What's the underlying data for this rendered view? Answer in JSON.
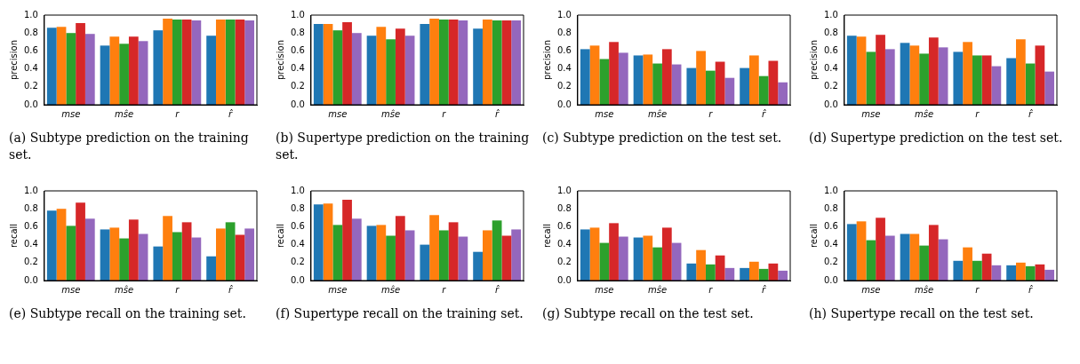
{
  "chart_data": [
    {
      "type": "bar",
      "ylabel": "precision",
      "categories": [
        "mse",
        "mŝe",
        "r",
        "r̂"
      ],
      "ylim": [
        0,
        1
      ],
      "yticks": [
        {
          "value": 0,
          "label": "0.0"
        },
        {
          "value": 0.2,
          "label": "0.2"
        },
        {
          "value": 0.4,
          "label": "0.4"
        },
        {
          "value": 0.6,
          "label": "0.6"
        },
        {
          "value": 0.8,
          "label": "0.8"
        },
        {
          "value": 1,
          "label": "1.0"
        }
      ],
      "annotations": [
        "(a) Subtype prediction on the training set."
      ],
      "series": [
        {
          "color": "#1f77b4",
          "values": [
            0.86,
            0.66,
            0.83,
            0.77
          ]
        },
        {
          "color": "#ff7f0e",
          "values": [
            0.87,
            0.76,
            0.96,
            0.95
          ]
        },
        {
          "color": "#2ca02c",
          "values": [
            0.8,
            0.68,
            0.95,
            0.95
          ]
        },
        {
          "color": "#d62728",
          "values": [
            0.91,
            0.76,
            0.95,
            0.95
          ]
        },
        {
          "color": "#9467bd",
          "values": [
            0.79,
            0.71,
            0.94,
            0.94
          ]
        }
      ]
    },
    {
      "type": "bar",
      "ylabel": "precision",
      "categories": [
        "mse",
        "mŝe",
        "r",
        "r̂"
      ],
      "ylim": [
        0,
        1
      ],
      "yticks": [
        {
          "value": 0,
          "label": "0.0"
        },
        {
          "value": 0.2,
          "label": "0.2"
        },
        {
          "value": 0.4,
          "label": "0.4"
        },
        {
          "value": 0.6,
          "label": "0.6"
        },
        {
          "value": 0.8,
          "label": "0.8"
        },
        {
          "value": 1,
          "label": "1.0"
        }
      ],
      "annotations": [
        "(b) Supertype prediction on the training set."
      ],
      "series": [
        {
          "color": "#1f77b4",
          "values": [
            0.9,
            0.77,
            0.9,
            0.85
          ]
        },
        {
          "color": "#ff7f0e",
          "values": [
            0.9,
            0.87,
            0.96,
            0.95
          ]
        },
        {
          "color": "#2ca02c",
          "values": [
            0.83,
            0.73,
            0.95,
            0.94
          ]
        },
        {
          "color": "#d62728",
          "values": [
            0.92,
            0.85,
            0.95,
            0.94
          ]
        },
        {
          "color": "#9467bd",
          "values": [
            0.8,
            0.77,
            0.94,
            0.94
          ]
        }
      ]
    },
    {
      "type": "bar",
      "ylabel": "precision",
      "categories": [
        "mse",
        "mŝe",
        "r",
        "r̂"
      ],
      "ylim": [
        0,
        1
      ],
      "yticks": [
        {
          "value": 0,
          "label": "0.0"
        },
        {
          "value": 0.2,
          "label": "0.2"
        },
        {
          "value": 0.4,
          "label": "0.4"
        },
        {
          "value": 0.6,
          "label": "0.6"
        },
        {
          "value": 0.8,
          "label": "0.8"
        },
        {
          "value": 1,
          "label": "1.0"
        }
      ],
      "annotations": [
        "(c) Subtype prediction on the test set."
      ],
      "series": [
        {
          "color": "#1f77b4",
          "values": [
            0.62,
            0.55,
            0.41,
            0.41
          ]
        },
        {
          "color": "#ff7f0e",
          "values": [
            0.66,
            0.56,
            0.6,
            0.55
          ]
        },
        {
          "color": "#2ca02c",
          "values": [
            0.51,
            0.46,
            0.38,
            0.32
          ]
        },
        {
          "color": "#d62728",
          "values": [
            0.7,
            0.62,
            0.48,
            0.49
          ]
        },
        {
          "color": "#9467bd",
          "values": [
            0.58,
            0.45,
            0.3,
            0.25
          ]
        }
      ]
    },
    {
      "type": "bar",
      "ylabel": "precision",
      "categories": [
        "mse",
        "mŝe",
        "r",
        "r̂"
      ],
      "ylim": [
        0,
        1
      ],
      "yticks": [
        {
          "value": 0,
          "label": "0.0"
        },
        {
          "value": 0.2,
          "label": "0.2"
        },
        {
          "value": 0.4,
          "label": "0.4"
        },
        {
          "value": 0.6,
          "label": "0.6"
        },
        {
          "value": 0.8,
          "label": "0.8"
        },
        {
          "value": 1,
          "label": "1.0"
        }
      ],
      "annotations": [
        "(d) Supertype prediction on the test set."
      ],
      "series": [
        {
          "color": "#1f77b4",
          "values": [
            0.77,
            0.69,
            0.59,
            0.52
          ]
        },
        {
          "color": "#ff7f0e",
          "values": [
            0.76,
            0.66,
            0.7,
            0.73
          ]
        },
        {
          "color": "#2ca02c",
          "values": [
            0.59,
            0.57,
            0.55,
            0.46
          ]
        },
        {
          "color": "#d62728",
          "values": [
            0.78,
            0.75,
            0.55,
            0.66
          ]
        },
        {
          "color": "#9467bd",
          "values": [
            0.62,
            0.64,
            0.43,
            0.37
          ]
        }
      ]
    },
    {
      "type": "bar",
      "ylabel": "recall",
      "categories": [
        "mse",
        "mŝe",
        "r",
        "r̂"
      ],
      "ylim": [
        0,
        1
      ],
      "yticks": [
        {
          "value": 0,
          "label": "0.0"
        },
        {
          "value": 0.2,
          "label": "0.2"
        },
        {
          "value": 0.4,
          "label": "0.4"
        },
        {
          "value": 0.6,
          "label": "0.6"
        },
        {
          "value": 0.8,
          "label": "0.8"
        },
        {
          "value": 1,
          "label": "1.0"
        }
      ],
      "annotations": [
        "(e) Subtype recall on the training set."
      ],
      "series": [
        {
          "color": "#1f77b4",
          "values": [
            0.78,
            0.57,
            0.38,
            0.27
          ]
        },
        {
          "color": "#ff7f0e",
          "values": [
            0.8,
            0.59,
            0.72,
            0.58
          ]
        },
        {
          "color": "#2ca02c",
          "values": [
            0.61,
            0.47,
            0.54,
            0.65
          ]
        },
        {
          "color": "#d62728",
          "values": [
            0.87,
            0.68,
            0.65,
            0.51
          ]
        },
        {
          "color": "#9467bd",
          "values": [
            0.69,
            0.52,
            0.48,
            0.58
          ]
        }
      ]
    },
    {
      "type": "bar",
      "ylabel": "recall",
      "categories": [
        "mse",
        "mŝe",
        "r",
        "r̂"
      ],
      "ylim": [
        0,
        1
      ],
      "yticks": [
        {
          "value": 0,
          "label": "0.0"
        },
        {
          "value": 0.2,
          "label": "0.2"
        },
        {
          "value": 0.4,
          "label": "0.4"
        },
        {
          "value": 0.6,
          "label": "0.6"
        },
        {
          "value": 0.8,
          "label": "0.8"
        },
        {
          "value": 1,
          "label": "1.0"
        }
      ],
      "annotations": [
        "(f) Supertype recall on the training set."
      ],
      "series": [
        {
          "color": "#1f77b4",
          "values": [
            0.85,
            0.61,
            0.4,
            0.32
          ]
        },
        {
          "color": "#ff7f0e",
          "values": [
            0.86,
            0.62,
            0.73,
            0.56
          ]
        },
        {
          "color": "#2ca02c",
          "values": [
            0.62,
            0.5,
            0.56,
            0.67
          ]
        },
        {
          "color": "#d62728",
          "values": [
            0.9,
            0.72,
            0.65,
            0.5
          ]
        },
        {
          "color": "#9467bd",
          "values": [
            0.69,
            0.56,
            0.49,
            0.57
          ]
        }
      ]
    },
    {
      "type": "bar",
      "ylabel": "recall",
      "categories": [
        "mse",
        "mŝe",
        "r",
        "r̂"
      ],
      "ylim": [
        0,
        1
      ],
      "yticks": [
        {
          "value": 0,
          "label": "0.0"
        },
        {
          "value": 0.2,
          "label": "0.2"
        },
        {
          "value": 0.4,
          "label": "0.4"
        },
        {
          "value": 0.6,
          "label": "0.6"
        },
        {
          "value": 0.8,
          "label": "0.8"
        },
        {
          "value": 1,
          "label": "1.0"
        }
      ],
      "annotations": [
        "(g) Subtype recall on the test set."
      ],
      "series": [
        {
          "color": "#1f77b4",
          "values": [
            0.57,
            0.48,
            0.19,
            0.14
          ]
        },
        {
          "color": "#ff7f0e",
          "values": [
            0.59,
            0.5,
            0.34,
            0.21
          ]
        },
        {
          "color": "#2ca02c",
          "values": [
            0.42,
            0.37,
            0.18,
            0.13
          ]
        },
        {
          "color": "#d62728",
          "values": [
            0.64,
            0.59,
            0.28,
            0.19
          ]
        },
        {
          "color": "#9467bd",
          "values": [
            0.49,
            0.42,
            0.14,
            0.11
          ]
        }
      ]
    },
    {
      "type": "bar",
      "ylabel": "recall",
      "categories": [
        "mse",
        "mŝe",
        "r",
        "r̂"
      ],
      "ylim": [
        0,
        1
      ],
      "yticks": [
        {
          "value": 0,
          "label": "0.0"
        },
        {
          "value": 0.2,
          "label": "0.2"
        },
        {
          "value": 0.4,
          "label": "0.4"
        },
        {
          "value": 0.6,
          "label": "0.6"
        },
        {
          "value": 0.8,
          "label": "0.8"
        },
        {
          "value": 1,
          "label": "1.0"
        }
      ],
      "annotations": [
        "(h) Supertype recall on the test set."
      ],
      "series": [
        {
          "color": "#1f77b4",
          "values": [
            0.63,
            0.52,
            0.22,
            0.17
          ]
        },
        {
          "color": "#ff7f0e",
          "values": [
            0.66,
            0.52,
            0.37,
            0.2
          ]
        },
        {
          "color": "#2ca02c",
          "values": [
            0.45,
            0.39,
            0.22,
            0.16
          ]
        },
        {
          "color": "#d62728",
          "values": [
            0.7,
            0.62,
            0.3,
            0.18
          ]
        },
        {
          "color": "#9467bd",
          "values": [
            0.5,
            0.46,
            0.17,
            0.12
          ]
        }
      ]
    }
  ]
}
